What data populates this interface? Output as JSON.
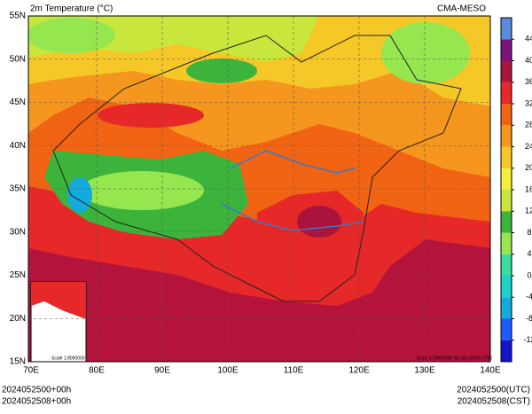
{
  "title": "2m Temperature (°C)",
  "source": "CMA-MESO",
  "lat_labels": [
    "55N",
    "50N",
    "45N",
    "40N",
    "35N",
    "30N",
    "25N",
    "20N",
    "15N"
  ],
  "lon_labels": [
    "70E",
    "80E",
    "90E",
    "100E",
    "110E",
    "120E",
    "130E",
    "140E"
  ],
  "colorbar": {
    "lim": [
      -16,
      48
    ],
    "ticks": [
      -12,
      -8,
      -4,
      0,
      4,
      8,
      12,
      16,
      20,
      24,
      28,
      32,
      36,
      40,
      44
    ],
    "colors": [
      "#1414c8",
      "#1e5aff",
      "#14aadc",
      "#1ed2c8",
      "#3cdca0",
      "#96e650",
      "#3cb43c",
      "#c8e63c",
      "#f5f03c",
      "#f5c828",
      "#f5961e",
      "#f06414",
      "#e62828",
      "#aa143c",
      "#78147a",
      "#5a8cdc"
    ]
  },
  "scale_labels": [
    "Scale 1:8000000",
    "Scale 1:28000000 No.GS (2019) 1786"
  ],
  "footer": {
    "left": [
      "2024052500+00h",
      "2024052508+00h"
    ],
    "right": [
      "2024052500(UTC)",
      "2024052508(CST)"
    ]
  }
}
